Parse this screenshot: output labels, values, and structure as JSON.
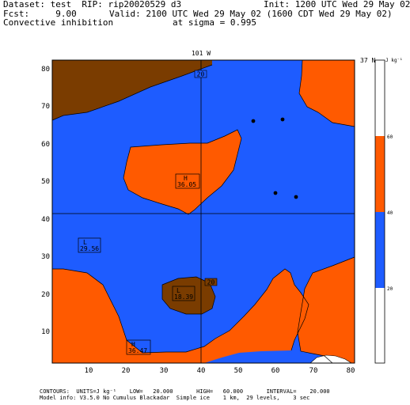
{
  "header": {
    "line1_left": "Dataset: test  RIP: rip20020529 d3",
    "line1_right": "Init: 1200 UTC Wed 29 May 02",
    "line2_left": "Fcst:     9.00",
    "line2_right": "Valid: 2100 UTC Wed 29 May 02 (1600 CDT Wed 29 May 02)",
    "line3_left": "Convective inhibition",
    "line3_right": "at sigma = 0.995"
  },
  "map": {
    "meridian_label": "101 W",
    "parallel_label": "37 N",
    "x_ticks": [
      "10",
      "20",
      "30",
      "40",
      "50",
      "60",
      "70",
      "80"
    ],
    "y_ticks": [
      "10",
      "20",
      "30",
      "40",
      "50",
      "60",
      "70",
      "80"
    ],
    "contour_labels": [
      "20",
      "20"
    ],
    "highs_lows": [
      {
        "letter": "H",
        "value": "36.05"
      },
      {
        "letter": "L",
        "value": "29.56"
      },
      {
        "letter": "L",
        "value": "18.39"
      },
      {
        "letter": "H",
        "value": "36.47"
      }
    ],
    "colors": {
      "blue": "#1e5cff",
      "orange": "#ff5a00",
      "brown": "#7a3c00",
      "white": "#ffffff"
    }
  },
  "colorbar": {
    "unit": "J kg⁻¹",
    "labels": [
      "60",
      "40",
      "20"
    ]
  },
  "footer": {
    "line1": "CONTOURS:  UNITS=J kg⁻¹    LOW=   20.000       HIGH=   60.000       INTERVAL=    20.000",
    "line2": "Model info: V3.5.0 No Cumulus Blackadar  Simple ice    1 km,  29 levels,    3 sec"
  }
}
